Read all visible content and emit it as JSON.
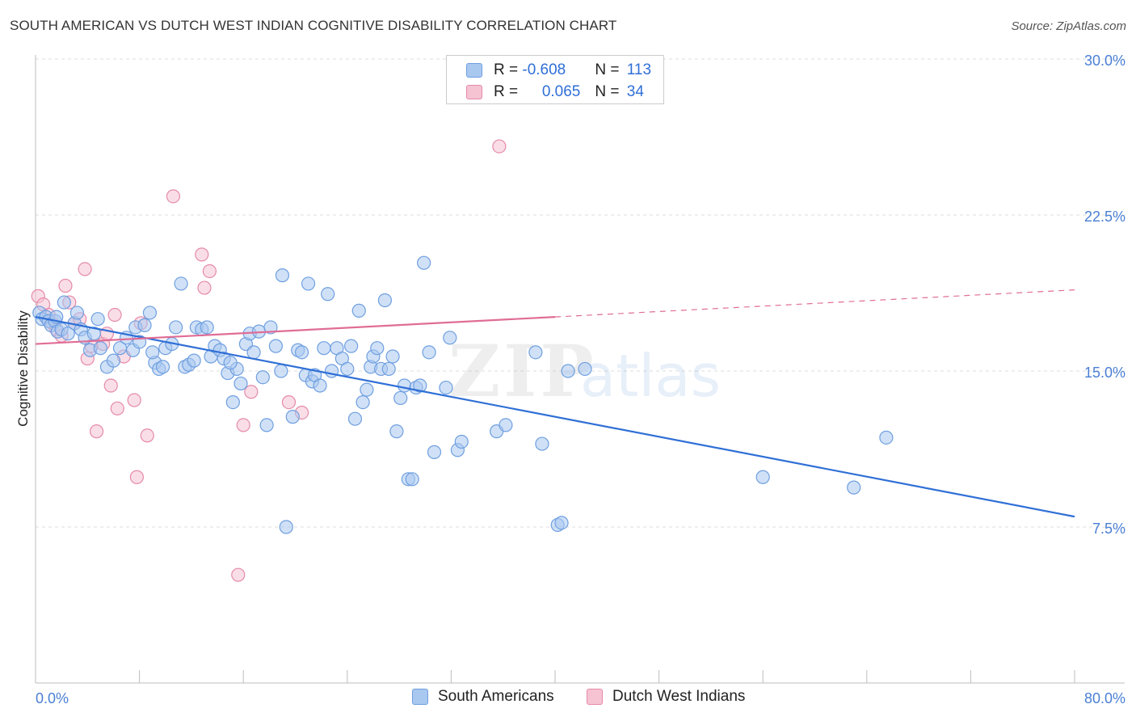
{
  "title": "SOUTH AMERICAN VS DUTCH WEST INDIAN COGNITIVE DISABILITY CORRELATION CHART",
  "source": "Source: ZipAtlas.com",
  "watermark": {
    "zip": "ZIP",
    "atlas": "atlas"
  },
  "legend": {
    "rows": [
      {
        "r_label": "R = ",
        "r_value": "-0.608",
        "n_label": "N = ",
        "n_value": "113",
        "color": "#a9c8f0",
        "border": "#6f9fe0"
      },
      {
        "r_label": "R = ",
        "r_value": "0.065",
        "n_label": "N = ",
        "n_value": "34",
        "color": "#f6c3d3",
        "border": "#e58aa9"
      }
    ]
  },
  "bottom_legend": [
    {
      "label": "South Americans",
      "color": "#a9c8f0",
      "border": "#6f9fe0"
    },
    {
      "label": "Dutch West Indians",
      "color": "#f6c3d3",
      "border": "#e58aa9"
    }
  ],
  "chart_data": {
    "type": "scatter",
    "title": "SOUTH AMERICAN VS DUTCH WEST INDIAN COGNITIVE DISABILITY CORRELATION CHART",
    "xlabel": "",
    "ylabel": "Cognitive Disability",
    "xlim": [
      0,
      80
    ],
    "ylim": [
      0,
      31
    ],
    "x_tick_labels": [
      "0.0%",
      "80.0%"
    ],
    "y_ticks": [
      7.5,
      15.0,
      22.5,
      30.0
    ],
    "y_tick_labels": [
      "7.5%",
      "15.0%",
      "22.5%",
      "30.0%"
    ],
    "grid": true,
    "series": [
      {
        "name": "South Americans",
        "color": "#6f9fe0",
        "fill": "#a9c8f0",
        "trend": {
          "x0": 0,
          "y0": 17.6,
          "x1": 80,
          "y1": 8.0,
          "style": "solid",
          "color": "#2f6fd6"
        },
        "points": [
          [
            0.3,
            17.8
          ],
          [
            0.5,
            17.5
          ],
          [
            0.8,
            17.6
          ],
          [
            1.0,
            17.4
          ],
          [
            1.2,
            17.2
          ],
          [
            1.5,
            17.4
          ],
          [
            1.7,
            16.9
          ],
          [
            2.0,
            17.0
          ],
          [
            2.2,
            18.3
          ],
          [
            2.5,
            16.8
          ],
          [
            3.0,
            17.3
          ],
          [
            3.2,
            17.8
          ],
          [
            3.5,
            17.0
          ],
          [
            3.8,
            16.6
          ],
          [
            4.2,
            16.0
          ],
          [
            4.5,
            16.8
          ],
          [
            5.0,
            16.1
          ],
          [
            5.5,
            15.2
          ],
          [
            6.0,
            15.5
          ],
          [
            6.5,
            16.1
          ],
          [
            7.0,
            16.6
          ],
          [
            7.5,
            16.0
          ],
          [
            7.7,
            17.1
          ],
          [
            8.0,
            16.4
          ],
          [
            8.4,
            17.2
          ],
          [
            8.8,
            17.8
          ],
          [
            9.2,
            15.4
          ],
          [
            9.5,
            15.1
          ],
          [
            9.8,
            15.2
          ],
          [
            10.0,
            16.1
          ],
          [
            10.5,
            16.3
          ],
          [
            10.8,
            17.1
          ],
          [
            11.2,
            19.2
          ],
          [
            11.5,
            15.2
          ],
          [
            11.8,
            15.3
          ],
          [
            12.2,
            15.5
          ],
          [
            12.4,
            17.1
          ],
          [
            12.8,
            17.0
          ],
          [
            13.2,
            17.1
          ],
          [
            13.5,
            15.7
          ],
          [
            13.8,
            16.2
          ],
          [
            14.2,
            16.0
          ],
          [
            14.5,
            15.6
          ],
          [
            14.8,
            14.9
          ],
          [
            15.2,
            13.5
          ],
          [
            15.5,
            15.1
          ],
          [
            15.8,
            14.4
          ],
          [
            16.2,
            16.3
          ],
          [
            16.5,
            16.8
          ],
          [
            16.8,
            15.9
          ],
          [
            17.2,
            16.9
          ],
          [
            17.5,
            14.7
          ],
          [
            17.8,
            12.4
          ],
          [
            18.1,
            17.1
          ],
          [
            18.5,
            16.2
          ],
          [
            18.9,
            15.0
          ],
          [
            19.0,
            19.6
          ],
          [
            19.3,
            7.5
          ],
          [
            19.8,
            12.8
          ],
          [
            20.2,
            16.0
          ],
          [
            20.5,
            15.9
          ],
          [
            20.8,
            14.8
          ],
          [
            21.0,
            19.2
          ],
          [
            21.3,
            14.5
          ],
          [
            21.5,
            14.8
          ],
          [
            21.9,
            14.3
          ],
          [
            22.2,
            16.1
          ],
          [
            22.5,
            18.7
          ],
          [
            22.8,
            15.0
          ],
          [
            23.2,
            16.1
          ],
          [
            23.6,
            15.6
          ],
          [
            24.0,
            15.1
          ],
          [
            24.3,
            16.2
          ],
          [
            24.6,
            12.7
          ],
          [
            24.9,
            17.9
          ],
          [
            25.2,
            13.5
          ],
          [
            25.5,
            14.1
          ],
          [
            25.8,
            15.2
          ],
          [
            26.0,
            15.7
          ],
          [
            26.3,
            16.1
          ],
          [
            26.6,
            15.1
          ],
          [
            26.9,
            18.4
          ],
          [
            27.2,
            15.1
          ],
          [
            27.5,
            15.7
          ],
          [
            27.8,
            12.1
          ],
          [
            28.1,
            13.7
          ],
          [
            28.4,
            14.3
          ],
          [
            28.7,
            9.8
          ],
          [
            29.0,
            9.8
          ],
          [
            29.3,
            14.2
          ],
          [
            29.6,
            14.3
          ],
          [
            29.9,
            20.2
          ],
          [
            30.3,
            15.9
          ],
          [
            30.7,
            11.1
          ],
          [
            31.6,
            14.2
          ],
          [
            31.9,
            16.6
          ],
          [
            32.5,
            11.2
          ],
          [
            32.8,
            11.6
          ],
          [
            35.5,
            12.1
          ],
          [
            36.2,
            12.4
          ],
          [
            38.5,
            15.9
          ],
          [
            39.0,
            11.5
          ],
          [
            40.2,
            7.6
          ],
          [
            40.5,
            7.7
          ],
          [
            41.0,
            15.0
          ],
          [
            42.3,
            15.1
          ],
          [
            56.0,
            9.9
          ],
          [
            63.0,
            9.4
          ],
          [
            65.5,
            11.8
          ],
          [
            1.6,
            17.6
          ],
          [
            4.8,
            17.5
          ],
          [
            9.0,
            15.9
          ],
          [
            15.0,
            15.4
          ]
        ]
      },
      {
        "name": "Dutch West Indians",
        "color": "#e58aa9",
        "fill": "#f6c3d3",
        "trend": {
          "x0": 0,
          "y0": 16.3,
          "x1": 40,
          "y1": 17.6,
          "x2": 80,
          "y2": 18.9,
          "style": "solid-then-dashed",
          "color": "#e06d96"
        },
        "points": [
          [
            0.2,
            18.6
          ],
          [
            0.6,
            18.2
          ],
          [
            1.0,
            17.7
          ],
          [
            1.3,
            17.3
          ],
          [
            1.6,
            17.0
          ],
          [
            2.0,
            16.7
          ],
          [
            2.3,
            19.1
          ],
          [
            2.6,
            18.3
          ],
          [
            3.0,
            17.3
          ],
          [
            3.4,
            17.5
          ],
          [
            3.8,
            19.9
          ],
          [
            4.0,
            15.6
          ],
          [
            4.3,
            16.2
          ],
          [
            4.7,
            12.1
          ],
          [
            5.2,
            16.3
          ],
          [
            5.5,
            16.8
          ],
          [
            5.8,
            14.3
          ],
          [
            6.1,
            17.7
          ],
          [
            6.3,
            13.2
          ],
          [
            6.8,
            15.7
          ],
          [
            7.6,
            13.6
          ],
          [
            7.8,
            9.9
          ],
          [
            8.1,
            17.3
          ],
          [
            8.6,
            11.9
          ],
          [
            10.6,
            23.4
          ],
          [
            12.8,
            20.6
          ],
          [
            13.0,
            19.0
          ],
          [
            13.4,
            19.8
          ],
          [
            15.6,
            5.2
          ],
          [
            16.0,
            12.4
          ],
          [
            16.6,
            14.0
          ],
          [
            19.5,
            13.5
          ],
          [
            20.5,
            13.0
          ],
          [
            35.7,
            25.8
          ]
        ]
      }
    ]
  }
}
